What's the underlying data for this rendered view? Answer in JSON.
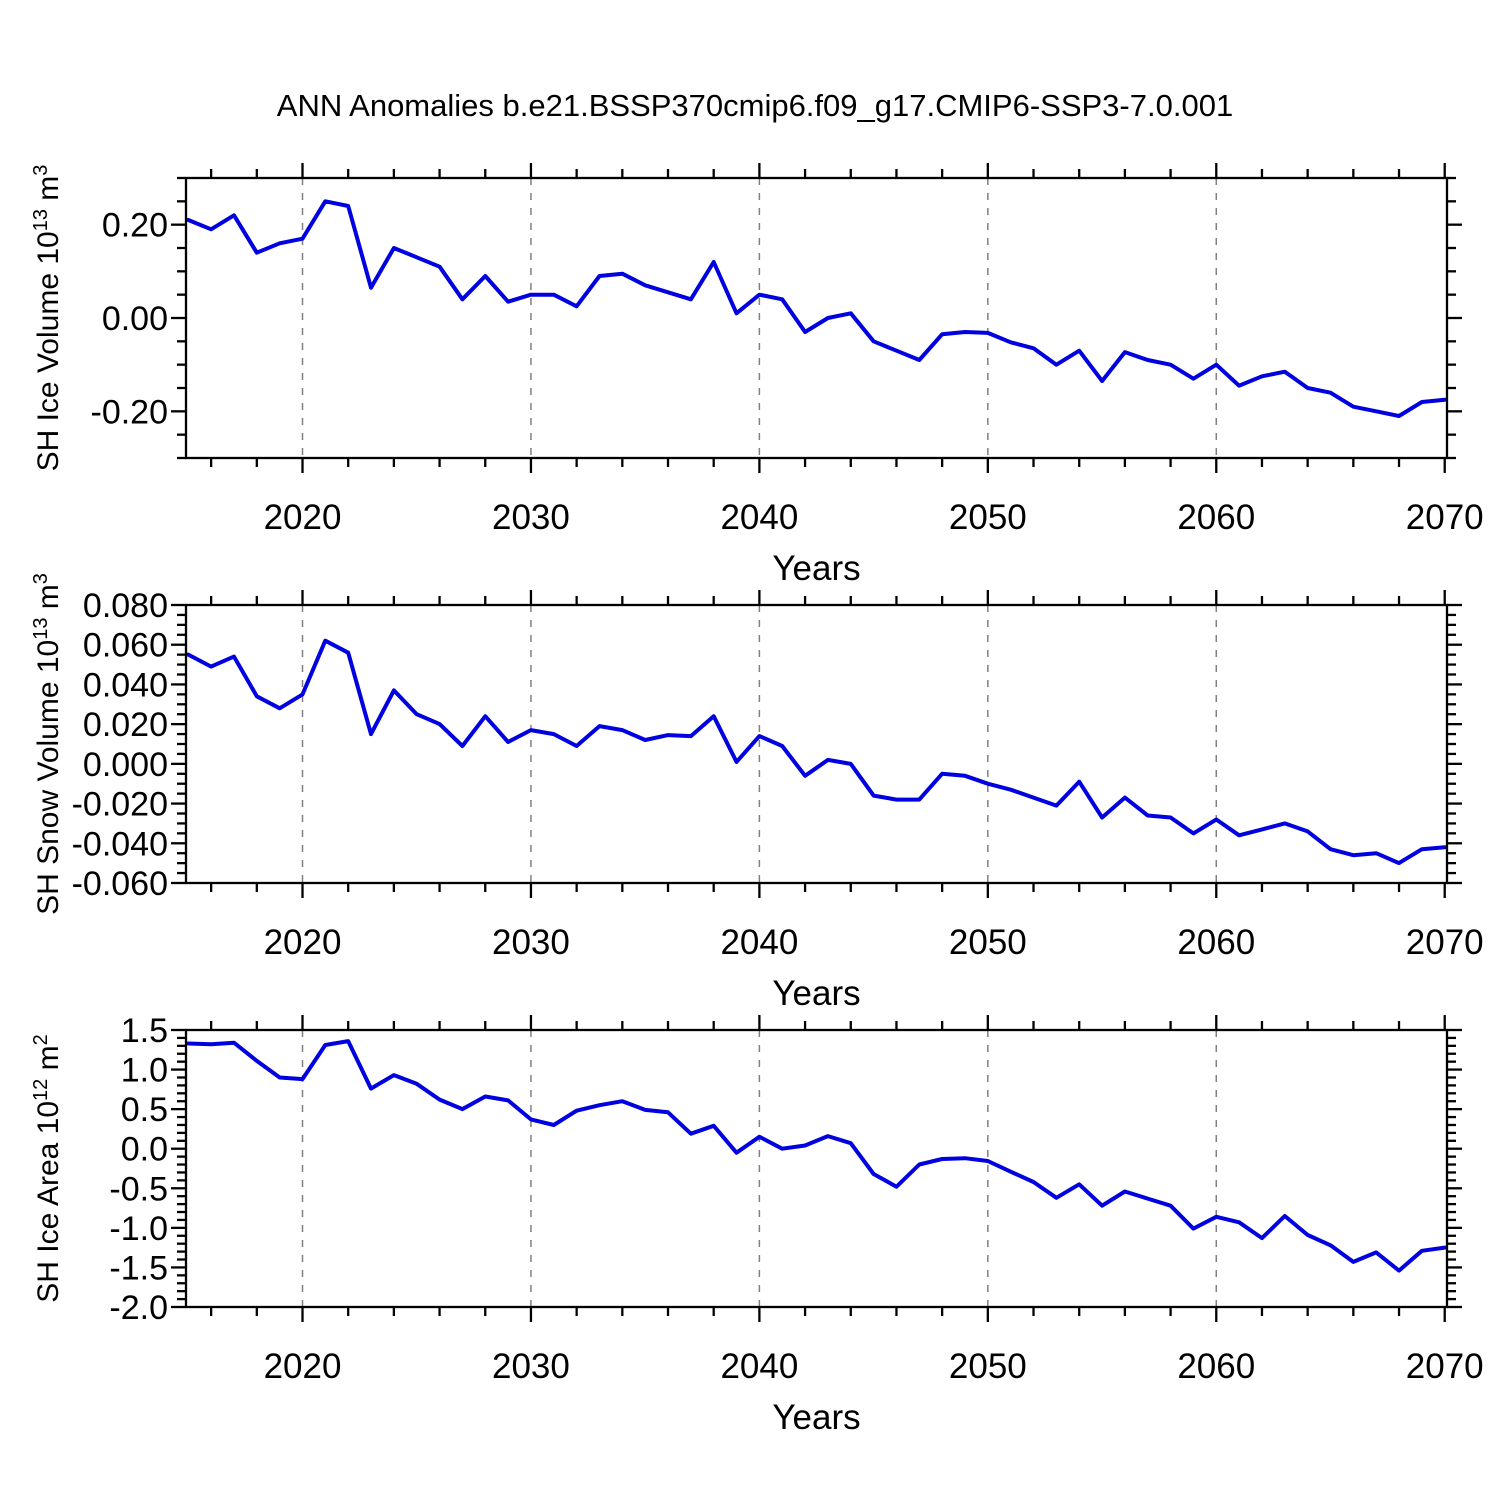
{
  "title": "ANN Anomalies b.e21.BSSP370cmip6.f09_g17.CMIP6-SSP3-7.0.001",
  "x_axis": {
    "label": "Years",
    "major_ticks": [
      2020,
      2030,
      2040,
      2050,
      2060,
      2070
    ],
    "minor_tick_step": 2,
    "gridline_years": [
      2020,
      2030,
      2040,
      2050,
      2060
    ]
  },
  "style": {
    "line_color": "#0000e0",
    "grid_color": "#808080",
    "axis_color": "#000000",
    "background": "#ffffff"
  },
  "chart_data": [
    {
      "type": "line",
      "name": "SH Ice Volume",
      "ylabel": "SH Ice Volume 10^13 m^3",
      "ylabel_parts": [
        {
          "text": "SH Ice Volume 10"
        },
        {
          "text": "13",
          "sup": true
        },
        {
          "text": " m"
        },
        {
          "text": "3",
          "sup": true
        }
      ],
      "xlabel": "Years",
      "ylim": [
        -0.3,
        0.3
      ],
      "ytick_labels": [
        "0.20",
        "0.00",
        "-0.20"
      ],
      "ytick_values": [
        0.2,
        0.0,
        -0.2
      ],
      "yminor_step": 0.05,
      "x_range": [
        2015,
        2070
      ],
      "values": [
        0.21,
        0.19,
        0.22,
        0.14,
        0.16,
        0.17,
        0.25,
        0.24,
        0.065,
        0.15,
        0.13,
        0.11,
        0.04,
        0.09,
        0.035,
        0.05,
        0.05,
        0.025,
        0.09,
        0.095,
        0.07,
        0.055,
        0.04,
        0.12,
        0.01,
        0.05,
        0.04,
        -0.03,
        0.0,
        0.01,
        -0.05,
        -0.07,
        -0.09,
        -0.035,
        -0.03,
        -0.032,
        -0.052,
        -0.065,
        -0.1,
        -0.07,
        -0.135,
        -0.073,
        -0.09,
        -0.1,
        -0.13,
        -0.1,
        -0.145,
        -0.125,
        -0.115,
        -0.15,
        -0.16,
        -0.19,
        -0.2,
        -0.21,
        -0.18,
        -0.175
      ]
    },
    {
      "type": "line",
      "name": "SH Snow Volume",
      "ylabel": "SH Snow Volume 10^13 m^3",
      "ylabel_parts": [
        {
          "text": "SH Snow Volume 10"
        },
        {
          "text": "13",
          "sup": true
        },
        {
          "text": " m"
        },
        {
          "text": "3",
          "sup": true
        }
      ],
      "xlabel": "Years",
      "ylim": [
        -0.06,
        0.08
      ],
      "ytick_labels": [
        "0.080",
        "0.060",
        "0.040",
        "0.020",
        "0.000",
        "-0.020",
        "-0.040",
        "-0.060"
      ],
      "ytick_values": [
        0.08,
        0.06,
        0.04,
        0.02,
        0.0,
        -0.02,
        -0.04,
        -0.06
      ],
      "yminor_step": 0.005,
      "x_range": [
        2015,
        2070
      ],
      "values": [
        0.055,
        0.049,
        0.054,
        0.034,
        0.028,
        0.035,
        0.062,
        0.056,
        0.015,
        0.037,
        0.025,
        0.02,
        0.009,
        0.024,
        0.011,
        0.017,
        0.015,
        0.009,
        0.019,
        0.017,
        0.012,
        0.0145,
        0.014,
        0.024,
        0.001,
        0.014,
        0.009,
        -0.006,
        0.002,
        0.0,
        -0.016,
        -0.018,
        -0.018,
        -0.005,
        -0.006,
        -0.01,
        -0.013,
        -0.017,
        -0.021,
        -0.009,
        -0.027,
        -0.017,
        -0.026,
        -0.027,
        -0.035,
        -0.028,
        -0.036,
        -0.033,
        -0.03,
        -0.034,
        -0.043,
        -0.046,
        -0.045,
        -0.05,
        -0.043,
        -0.042
      ]
    },
    {
      "type": "line",
      "name": "SH Ice Area",
      "ylabel": "SH Ice Area 10^12 m^2",
      "ylabel_parts": [
        {
          "text": "SH Ice Area 10"
        },
        {
          "text": "12",
          "sup": true
        },
        {
          "text": " m"
        },
        {
          "text": "2",
          "sup": true
        }
      ],
      "xlabel": "Years",
      "ylim": [
        -2.0,
        1.5
      ],
      "ytick_labels": [
        "1.5",
        "1.0",
        "0.5",
        "0.0",
        "-0.5",
        "-1.0",
        "-1.5",
        "-2.0"
      ],
      "ytick_values": [
        1.5,
        1.0,
        0.5,
        0.0,
        -0.5,
        -1.0,
        -1.5,
        -2.0
      ],
      "yminor_step": 0.1,
      "x_range": [
        2015,
        2070
      ],
      "values": [
        1.33,
        1.32,
        1.34,
        1.11,
        0.9,
        0.88,
        1.31,
        1.36,
        0.76,
        0.93,
        0.82,
        0.62,
        0.5,
        0.66,
        0.61,
        0.37,
        0.3,
        0.48,
        0.55,
        0.6,
        0.49,
        0.46,
        0.19,
        0.29,
        -0.05,
        0.15,
        0.0,
        0.04,
        0.16,
        0.07,
        -0.32,
        -0.48,
        -0.2,
        -0.13,
        -0.12,
        -0.155,
        -0.29,
        -0.42,
        -0.62,
        -0.45,
        -0.72,
        -0.54,
        -0.63,
        -0.72,
        -1.01,
        -0.86,
        -0.93,
        -1.13,
        -0.85,
        -1.09,
        -1.22,
        -1.43,
        -1.31,
        -1.54,
        -1.29,
        -1.25
      ]
    }
  ]
}
